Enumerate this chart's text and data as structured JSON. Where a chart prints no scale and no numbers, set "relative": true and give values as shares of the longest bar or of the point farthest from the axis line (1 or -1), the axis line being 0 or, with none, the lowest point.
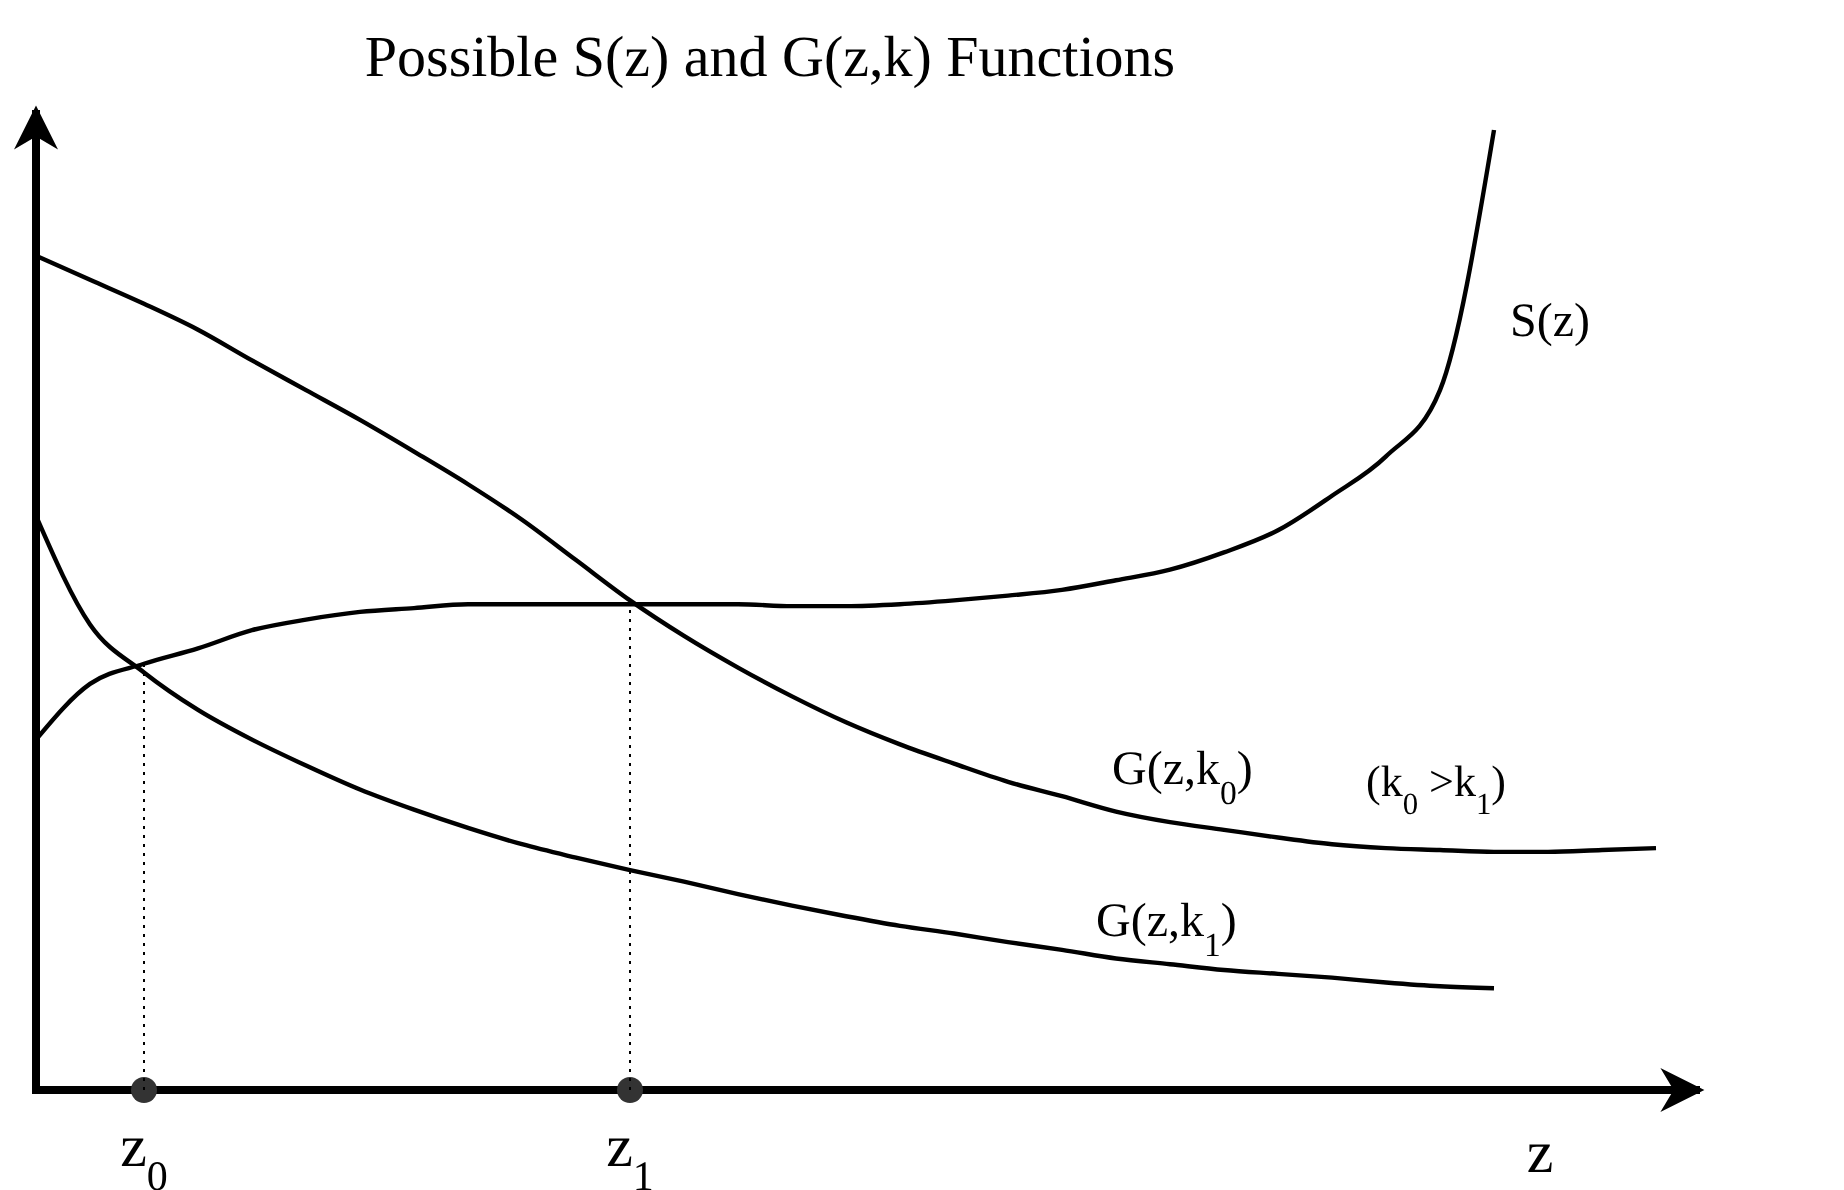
{
  "chart_data": {
    "type": "line",
    "title": "Possible S(z) and G(z,k) Functions",
    "xlabel": "z",
    "relative": true,
    "line_style": "solid",
    "categories": [
      null,
      null,
      "z$_{0}$",
      null,
      null,
      null,
      null,
      null,
      null,
      null,
      null,
      "z$_{1}$",
      null,
      null,
      null,
      null,
      null,
      null,
      null,
      null,
      null,
      null,
      null,
      null,
      null,
      null,
      null,
      null,
      null,
      null,
      null
    ],
    "annotations": [
      "(k$_{0}$ >k$_{1}$)"
    ],
    "series": [
      {
        "name": "S(z)",
        "color": "#000000",
        "values": [
          0.365,
          0.423,
          0.444,
          0.46,
          0.479,
          0.49,
          0.498,
          0.502,
          0.506,
          0.506,
          0.506,
          0.506,
          0.506,
          0.506,
          0.504,
          0.504,
          0.506,
          0.51,
          0.515,
          0.521,
          0.531,
          0.542,
          0.56,
          0.583,
          0.619,
          0.66,
          0.729,
          1,
          null,
          null,
          null
        ]
      },
      {
        "name": "G(z,k$_{0}$)",
        "color": "#000000",
        "values": [
          0.869,
          0.844,
          0.819,
          0.792,
          0.76,
          0.729,
          0.698,
          0.665,
          0.631,
          0.594,
          0.552,
          0.51,
          0.473,
          0.44,
          0.41,
          0.383,
          0.36,
          0.34,
          0.321,
          0.306,
          0.29,
          0.279,
          0.271,
          0.263,
          0.256,
          0.252,
          0.25,
          0.248,
          0.248,
          0.25,
          0.252
        ]
      },
      {
        "name": "G(z,k$_{1}$)",
        "color": "#000000",
        "values": [
          0.598,
          0.485,
          0.435,
          0.396,
          0.365,
          0.338,
          0.313,
          0.292,
          0.273,
          0.256,
          0.242,
          0.229,
          0.217,
          0.204,
          0.192,
          0.181,
          0.171,
          0.163,
          0.154,
          0.146,
          0.137,
          0.131,
          0.125,
          0.121,
          0.117,
          0.112,
          0.108,
          0.106,
          null,
          null,
          null
        ]
      }
    ]
  }
}
